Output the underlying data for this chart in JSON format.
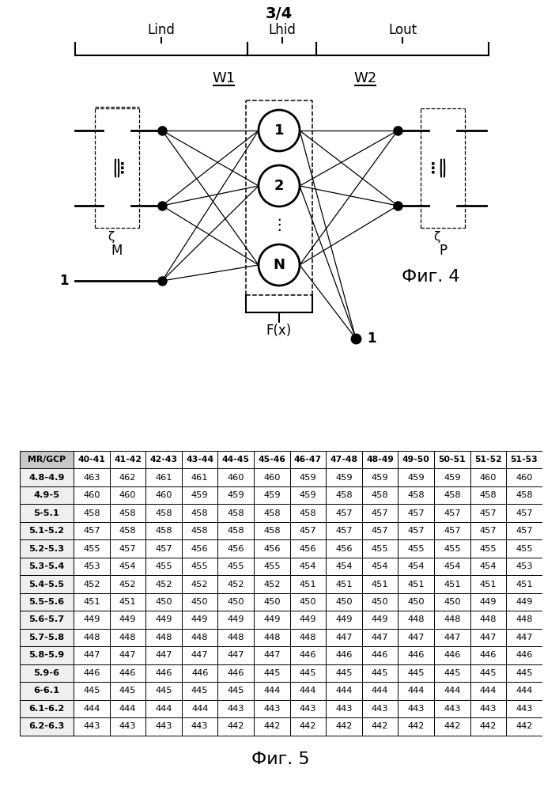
{
  "page_label": "3/4",
  "fig4_label": "Фиг. 4",
  "fig5_label": "Фиг. 5",
  "table_header": [
    "MR/GCP",
    "40-41",
    "41-42",
    "42-43",
    "43-44",
    "44-45",
    "45-46",
    "46-47",
    "47-48",
    "48-49",
    "49-50",
    "50-51",
    "51-52",
    "51-53"
  ],
  "table_rows": [
    [
      "4.8-4.9",
      463,
      462,
      461,
      461,
      460,
      460,
      459,
      459,
      459,
      459,
      459,
      460,
      460
    ],
    [
      "4.9-5",
      460,
      460,
      460,
      459,
      459,
      459,
      459,
      458,
      458,
      458,
      458,
      458,
      458
    ],
    [
      "5-5.1",
      458,
      458,
      458,
      458,
      458,
      458,
      458,
      457,
      457,
      457,
      457,
      457,
      457
    ],
    [
      "5.1-5.2",
      457,
      458,
      458,
      458,
      458,
      458,
      457,
      457,
      457,
      457,
      457,
      457,
      457
    ],
    [
      "5.2-5.3",
      455,
      457,
      457,
      456,
      456,
      456,
      456,
      456,
      455,
      455,
      455,
      455,
      455
    ],
    [
      "5.3-5.4",
      453,
      454,
      455,
      455,
      455,
      455,
      454,
      454,
      454,
      454,
      454,
      454,
      453
    ],
    [
      "5.4-5.5",
      452,
      452,
      452,
      452,
      452,
      452,
      451,
      451,
      451,
      451,
      451,
      451,
      451
    ],
    [
      "5.5-5.6",
      451,
      451,
      450,
      450,
      450,
      450,
      450,
      450,
      450,
      450,
      450,
      449,
      449
    ],
    [
      "5.6-5.7",
      449,
      449,
      449,
      449,
      449,
      449,
      449,
      449,
      449,
      448,
      448,
      448,
      448
    ],
    [
      "5.7-5.8",
      448,
      448,
      448,
      448,
      448,
      448,
      448,
      447,
      447,
      447,
      447,
      447,
      447
    ],
    [
      "5.8-5.9",
      447,
      447,
      447,
      447,
      447,
      447,
      446,
      446,
      446,
      446,
      446,
      446,
      446
    ],
    [
      "5.9-6",
      446,
      446,
      446,
      446,
      446,
      445,
      445,
      445,
      445,
      445,
      445,
      445,
      445
    ],
    [
      "6-6.1",
      445,
      445,
      445,
      445,
      445,
      444,
      444,
      444,
      444,
      444,
      444,
      444,
      444
    ],
    [
      "6.1-6.2",
      444,
      444,
      444,
      444,
      443,
      443,
      443,
      443,
      443,
      443,
      443,
      443,
      443
    ],
    [
      "6.2-6.3",
      443,
      443,
      443,
      443,
      442,
      442,
      442,
      442,
      442,
      442,
      442,
      442,
      442
    ]
  ],
  "lind_label": "Lind",
  "lhid_label": "Lhid",
  "lout_label": "Lout",
  "w1_label": "W1",
  "w2_label": "W2",
  "node_labels": [
    "1",
    "2",
    "N"
  ],
  "m_label": "M",
  "p_label": "P",
  "fx_label": "F(x)",
  "bias_label": "1",
  "background_color": "#ffffff"
}
